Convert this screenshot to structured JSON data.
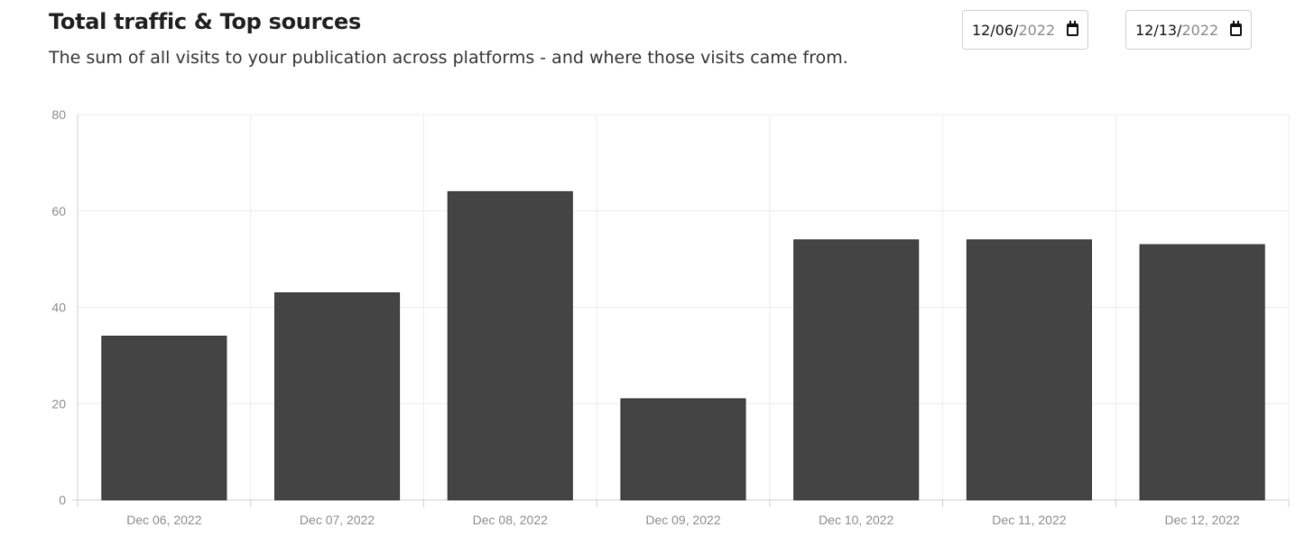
{
  "header": {
    "title": "Total traffic & Top sources",
    "subtitle": "The sum of all visits to your publication across platforms - and where those visits came from."
  },
  "date_range": {
    "start": {
      "month": "12",
      "day": "06",
      "year": "2022",
      "separator": "/"
    },
    "end": {
      "month": "12",
      "day": "13",
      "year": "2022",
      "separator": "/"
    }
  },
  "icons": {
    "date_picker": "calendar-icon"
  },
  "chart_data": {
    "type": "bar",
    "title": "",
    "xlabel": "",
    "ylabel": "",
    "categories": [
      "Dec 06, 2022",
      "Dec 07, 2022",
      "Dec 08, 2022",
      "Dec 09, 2022",
      "Dec 10, 2022",
      "Dec 11, 2022",
      "Dec 12, 2022"
    ],
    "values": [
      34,
      43,
      64,
      21,
      54,
      54,
      53
    ],
    "ylim": [
      0,
      80
    ],
    "yticks": [
      0,
      20,
      40,
      60,
      80
    ],
    "grid": true,
    "legend": "none",
    "bar_color": "#444444",
    "grid_color": "#ececec",
    "axis_color": "#cfcfcf"
  }
}
